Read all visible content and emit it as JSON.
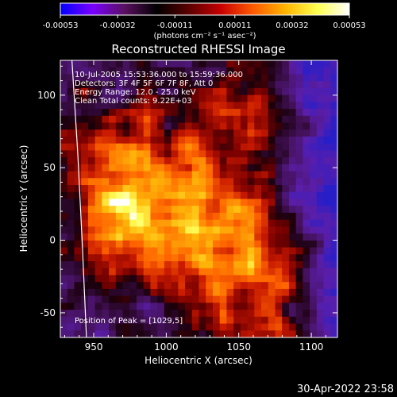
{
  "colorbar": {
    "ticks": [
      "-0.00053",
      "-0.00032",
      "-0.00011",
      "0.00011",
      "0.00032",
      "0.00053"
    ],
    "units_label": "(photons cm⁻² s⁻¹ asec⁻²)"
  },
  "annotations": [
    "10-Jul-2005 15:53:36.000 to 15:59:36.000",
    "Detectors: 3F 4F 5F 6F 7F 8F, Att 0",
    "Energy Range: 12.0 - 25.0 keV",
    "Clean     Total counts: 9.22E+03"
  ],
  "peak_label": "Position of Peak = [1029,5]",
  "timestamp": "30-Apr-2022 23:58",
  "chart_data": {
    "type": "heatmap",
    "title": "Reconstructed RHESSI Image",
    "xlabel": "Heliocentric X (arcsec)",
    "ylabel": "Heliocentric Y (arcsec)",
    "xlim": [
      927,
      1118
    ],
    "ylim": [
      -67,
      124
    ],
    "x_ticks": [
      950,
      1000,
      1050,
      1100
    ],
    "y_ticks": [
      -50,
      0,
      50,
      100
    ],
    "value_range": [
      -0.00053,
      0.00053
    ],
    "peak": [
      1029,
      5
    ],
    "limb_curve": [
      [
        935,
        124
      ],
      [
        939,
        60
      ],
      [
        942,
        0
      ],
      [
        945,
        -67
      ]
    ],
    "colorscale": [
      "#0000ff",
      "#7a00ff",
      "#5a1060",
      "#000000",
      "#5a0000",
      "#c80000",
      "#ff5a00",
      "#ffb400",
      "#ffff50",
      "#ffffff"
    ]
  }
}
